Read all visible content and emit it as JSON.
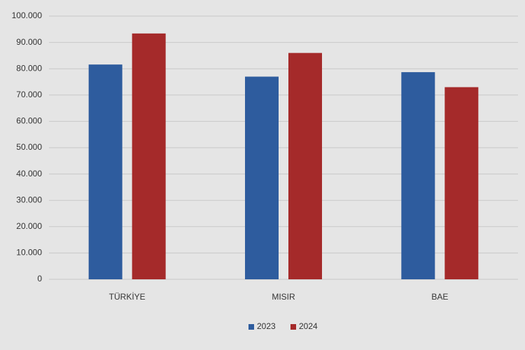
{
  "chart_data": {
    "type": "bar",
    "categories": [
      "TÜRKİYE",
      "MISIR",
      "BAE"
    ],
    "series": [
      {
        "name": "2023",
        "color": "#2e5c9e",
        "values": [
          81600,
          77000,
          78700
        ]
      },
      {
        "name": "2024",
        "color": "#a52a2a",
        "values": [
          93400,
          86000,
          73000
        ]
      }
    ],
    "ylim": [
      0,
      100000
    ],
    "yticks": [
      0,
      {
        "value": 10000,
        "label": "10.000"
      },
      {
        "value": 20000,
        "label": "20.000"
      },
      {
        "value": 30000,
        "label": "30.000"
      },
      {
        "value": 40000,
        "label": "40.000"
      },
      {
        "value": 50000,
        "label": "50.000"
      },
      {
        "value": 60000,
        "label": "60.000"
      },
      {
        "value": 70000,
        "label": "70.000"
      },
      {
        "value": 80000,
        "label": "80.000"
      },
      {
        "value": 90000,
        "label": "90.000"
      },
      {
        "value": 100000,
        "label": "100.000"
      }
    ],
    "grid": true,
    "legend": "bottom"
  }
}
